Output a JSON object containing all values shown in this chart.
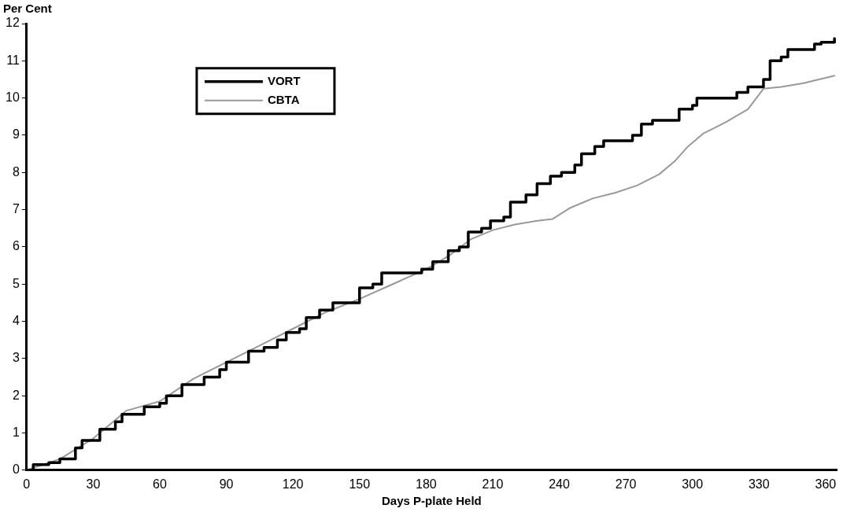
{
  "chart_data": {
    "type": "line",
    "ylabel": "Per Cent",
    "xlabel": "Days P-plate Held",
    "xlim": [
      0,
      365
    ],
    "xticks": [
      0,
      30,
      60,
      90,
      120,
      150,
      180,
      210,
      240,
      270,
      300,
      330,
      360
    ],
    "ylim": [
      0,
      12
    ],
    "yticks": [
      0,
      1,
      2,
      3,
      4,
      5,
      6,
      7,
      8,
      9,
      10,
      11,
      12
    ],
    "grid": false,
    "legend": "top left",
    "marker": "none",
    "series": [
      {
        "name": "VORT",
        "color": "#000000",
        "type": "step",
        "x": [
          0,
          3,
          10,
          15,
          22,
          25,
          33,
          40,
          43,
          53,
          60,
          63,
          70,
          80,
          87,
          90,
          100,
          107,
          113,
          117,
          123,
          126,
          132,
          138,
          150,
          156,
          160,
          178,
          183,
          190,
          195,
          199,
          205,
          209,
          215,
          218,
          225,
          230,
          236,
          241,
          247,
          250,
          256,
          260,
          273,
          277,
          282,
          294,
          300,
          302,
          320,
          325,
          332,
          335,
          340,
          343,
          355,
          358,
          364
        ],
        "values": [
          0,
          0.15,
          0.2,
          0.3,
          0.6,
          0.8,
          1.1,
          1.3,
          1.5,
          1.7,
          1.8,
          2.0,
          2.3,
          2.5,
          2.7,
          2.9,
          3.2,
          3.3,
          3.5,
          3.7,
          3.8,
          4.1,
          4.3,
          4.5,
          4.9,
          5.0,
          5.3,
          5.4,
          5.6,
          5.9,
          6.0,
          6.4,
          6.5,
          6.7,
          6.8,
          7.2,
          7.4,
          7.7,
          7.9,
          8.0,
          8.2,
          8.5,
          8.7,
          8.85,
          9.0,
          9.3,
          9.4,
          9.7,
          9.8,
          10.0,
          10.15,
          10.3,
          10.5,
          11.0,
          11.1,
          11.3,
          11.45,
          11.5,
          11.6
        ]
      },
      {
        "name": "CBTA",
        "color": "#999999",
        "type": "line",
        "x": [
          0,
          15,
          30,
          45,
          60,
          75,
          90,
          105,
          120,
          135,
          150,
          165,
          180,
          190,
          200,
          210,
          220,
          230,
          237,
          245,
          255,
          265,
          275,
          285,
          292,
          298,
          305,
          315,
          325,
          332,
          340,
          350,
          364
        ],
        "values": [
          0,
          0.3,
          0.85,
          1.6,
          1.85,
          2.45,
          2.9,
          3.35,
          3.8,
          4.25,
          4.6,
          5.0,
          5.4,
          5.75,
          6.2,
          6.45,
          6.6,
          6.7,
          6.75,
          7.05,
          7.3,
          7.45,
          7.65,
          7.95,
          8.3,
          8.7,
          9.05,
          9.35,
          9.7,
          10.25,
          10.3,
          10.4,
          10.6
        ]
      }
    ]
  }
}
